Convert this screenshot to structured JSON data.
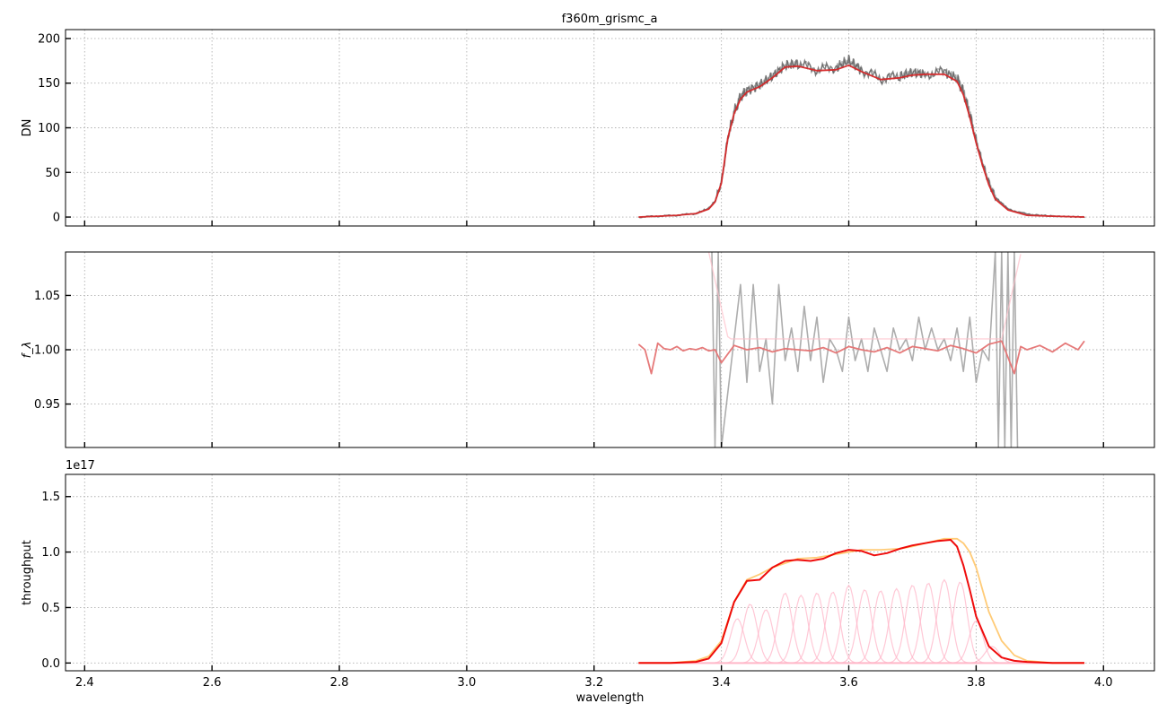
{
  "figure_title": "f360m_grismc_a",
  "chart_data": [
    {
      "type": "line",
      "title": "f360m_grismc_a",
      "xlabel": "",
      "ylabel": "DN",
      "xlim": [
        2.37,
        4.08
      ],
      "ylim": [
        -10,
        210
      ],
      "xticks": [
        2.4,
        2.6,
        2.8,
        3.0,
        3.2,
        3.4,
        3.6,
        3.8,
        4.0
      ],
      "yticks": [
        0,
        50,
        100,
        150,
        200
      ],
      "grid": true,
      "series": [
        {
          "style": "data",
          "color": "#555555",
          "x": [
            3.27,
            3.3,
            3.33,
            3.36,
            3.38,
            3.39,
            3.4,
            3.41,
            3.42,
            3.43,
            3.44,
            3.46,
            3.48,
            3.5,
            3.52,
            3.55,
            3.58,
            3.6,
            3.62,
            3.65,
            3.68,
            3.7,
            3.72,
            3.75,
            3.77,
            3.78,
            3.79,
            3.8,
            3.81,
            3.82,
            3.83,
            3.85,
            3.88,
            3.92,
            3.97
          ],
          "y": [
            0,
            1,
            2,
            4,
            10,
            18,
            40,
            90,
            118,
            135,
            142,
            148,
            158,
            170,
            172,
            165,
            168,
            175,
            165,
            155,
            158,
            162,
            160,
            163,
            155,
            140,
            115,
            85,
            60,
            38,
            22,
            9,
            3,
            1,
            0
          ]
        },
        {
          "style": "model",
          "color": "#d62728",
          "x": [
            3.27,
            3.3,
            3.33,
            3.36,
            3.38,
            3.39,
            3.4,
            3.41,
            3.42,
            3.43,
            3.44,
            3.46,
            3.48,
            3.5,
            3.52,
            3.55,
            3.58,
            3.6,
            3.62,
            3.65,
            3.68,
            3.7,
            3.72,
            3.75,
            3.77,
            3.78,
            3.79,
            3.8,
            3.81,
            3.82,
            3.83,
            3.85,
            3.88,
            3.92,
            3.97
          ],
          "y": [
            0,
            1,
            2,
            4,
            9,
            17,
            38,
            88,
            116,
            132,
            140,
            146,
            156,
            168,
            169,
            164,
            165,
            170,
            163,
            154,
            156,
            159,
            160,
            160,
            152,
            137,
            112,
            83,
            58,
            36,
            20,
            8,
            2,
            1,
            0
          ]
        }
      ]
    },
    {
      "type": "line",
      "title": "",
      "xlabel": "",
      "ylabel": "f_λ",
      "xlim": [
        2.37,
        4.08
      ],
      "ylim": [
        0.91,
        1.09
      ],
      "xticks": [
        2.4,
        2.6,
        2.8,
        3.0,
        3.2,
        3.4,
        3.6,
        3.8,
        4.0
      ],
      "yticks": [
        0.95,
        1.0,
        1.05
      ],
      "ytick_labels": [
        "0.95",
        "1.00",
        "1.05"
      ],
      "grid": true,
      "series": [
        {
          "style": "data",
          "color": "#999999",
          "x": [
            3.385,
            3.39,
            3.395,
            3.4,
            3.41,
            3.42,
            3.43,
            3.44,
            3.45,
            3.46,
            3.47,
            3.48,
            3.49,
            3.5,
            3.51,
            3.52,
            3.53,
            3.54,
            3.55,
            3.56,
            3.57,
            3.58,
            3.59,
            3.6,
            3.61,
            3.62,
            3.63,
            3.64,
            3.65,
            3.66,
            3.67,
            3.68,
            3.69,
            3.7,
            3.71,
            3.72,
            3.73,
            3.74,
            3.75,
            3.76,
            3.77,
            3.78,
            3.79,
            3.8,
            3.81,
            3.82,
            3.83,
            3.835,
            3.84,
            3.845,
            3.85,
            3.855,
            3.86,
            3.865
          ],
          "y": [
            1.09,
            0.91,
            1.09,
            0.91,
            0.96,
            1.01,
            1.06,
            0.97,
            1.06,
            0.98,
            1.01,
            0.95,
            1.06,
            0.99,
            1.02,
            0.98,
            1.04,
            0.99,
            1.03,
            0.97,
            1.01,
            1.0,
            0.98,
            1.03,
            0.99,
            1.01,
            0.98,
            1.02,
            1.0,
            0.98,
            1.02,
            1.0,
            1.01,
            0.99,
            1.03,
            1.0,
            1.02,
            1.0,
            1.01,
            0.99,
            1.02,
            0.98,
            1.03,
            0.97,
            1.0,
            0.99,
            1.09,
            0.91,
            1.09,
            0.91,
            1.09,
            0.91,
            1.09,
            0.91
          ]
        },
        {
          "style": "model",
          "color": "#e57373",
          "x": [
            3.27,
            3.28,
            3.29,
            3.3,
            3.31,
            3.32,
            3.33,
            3.34,
            3.35,
            3.36,
            3.37,
            3.38,
            3.39,
            3.4,
            3.42,
            3.44,
            3.46,
            3.48,
            3.5,
            3.52,
            3.54,
            3.56,
            3.58,
            3.6,
            3.62,
            3.64,
            3.66,
            3.68,
            3.7,
            3.72,
            3.74,
            3.76,
            3.78,
            3.8,
            3.82,
            3.84,
            3.86,
            3.87,
            3.88,
            3.9,
            3.92,
            3.94,
            3.96,
            3.97
          ],
          "y": [
            1.005,
            1.0,
            0.978,
            1.006,
            1.001,
            1.0,
            1.003,
            0.999,
            1.001,
            1.0,
            1.002,
            0.999,
            1.0,
            0.988,
            1.004,
            1.0,
            1.002,
            0.998,
            1.001,
            1.0,
            0.999,
            1.002,
            0.997,
            1.003,
            1.0,
            0.998,
            1.002,
            0.997,
            1.003,
            1.001,
            0.999,
            1.004,
            1.001,
            0.997,
            1.005,
            1.008,
            0.978,
            1.003,
            1.0,
            1.004,
            0.998,
            1.006,
            1.0,
            1.008
          ]
        }
      ]
    },
    {
      "type": "line",
      "title": "",
      "xlabel": "wavelength",
      "ylabel": "throughput",
      "scale_label": "1e17",
      "xlim": [
        2.37,
        4.08
      ],
      "ylim": [
        -0.07,
        1.7
      ],
      "xticks": [
        2.4,
        2.6,
        2.8,
        3.0,
        3.2,
        3.4,
        3.6,
        3.8,
        4.0
      ],
      "yticks": [
        0.0,
        0.5,
        1.0,
        1.5
      ],
      "ytick_labels": [
        "0.0",
        "0.5",
        "1.0",
        "1.5"
      ],
      "grid": true,
      "series": [
        {
          "style": "envelope",
          "color": "#ffc870",
          "x": [
            3.27,
            3.32,
            3.36,
            3.38,
            3.4,
            3.42,
            3.44,
            3.46,
            3.48,
            3.5,
            3.52,
            3.55,
            3.58,
            3.6,
            3.62,
            3.65,
            3.68,
            3.7,
            3.72,
            3.75,
            3.77,
            3.78,
            3.79,
            3.8,
            3.81,
            3.82,
            3.84,
            3.86,
            3.88,
            3.92,
            3.97
          ],
          "y": [
            0.0,
            0.0,
            0.02,
            0.06,
            0.2,
            0.55,
            0.75,
            0.8,
            0.86,
            0.9,
            0.94,
            0.95,
            0.98,
            1.0,
            1.02,
            1.02,
            1.03,
            1.05,
            1.08,
            1.12,
            1.12,
            1.08,
            1.0,
            0.86,
            0.66,
            0.46,
            0.2,
            0.07,
            0.02,
            0.0,
            0.0
          ]
        },
        {
          "style": "total",
          "color": "#ee0000",
          "x": [
            3.27,
            3.32,
            3.36,
            3.38,
            3.4,
            3.42,
            3.44,
            3.46,
            3.48,
            3.5,
            3.52,
            3.54,
            3.56,
            3.58,
            3.6,
            3.62,
            3.64,
            3.66,
            3.68,
            3.7,
            3.72,
            3.74,
            3.76,
            3.77,
            3.78,
            3.79,
            3.8,
            3.82,
            3.84,
            3.86,
            3.88,
            3.92,
            3.97
          ],
          "y": [
            0.0,
            0.0,
            0.01,
            0.04,
            0.18,
            0.55,
            0.74,
            0.75,
            0.86,
            0.92,
            0.93,
            0.92,
            0.94,
            0.99,
            1.02,
            1.01,
            0.97,
            0.99,
            1.03,
            1.06,
            1.08,
            1.1,
            1.11,
            1.05,
            0.88,
            0.66,
            0.42,
            0.15,
            0.05,
            0.02,
            0.01,
            0.0,
            0.0
          ]
        }
      ],
      "components": {
        "color": "#ffb6c8",
        "centers": [
          3.425,
          3.445,
          3.47,
          3.5,
          3.525,
          3.55,
          3.575,
          3.6,
          3.625,
          3.65,
          3.675,
          3.7,
          3.725,
          3.75,
          3.775,
          3.8,
          3.825
        ],
        "peaks": [
          0.4,
          0.53,
          0.48,
          0.63,
          0.61,
          0.63,
          0.64,
          0.7,
          0.66,
          0.65,
          0.67,
          0.7,
          0.72,
          0.75,
          0.73,
          0.38,
          0.15
        ],
        "width": 0.011
      }
    }
  ]
}
